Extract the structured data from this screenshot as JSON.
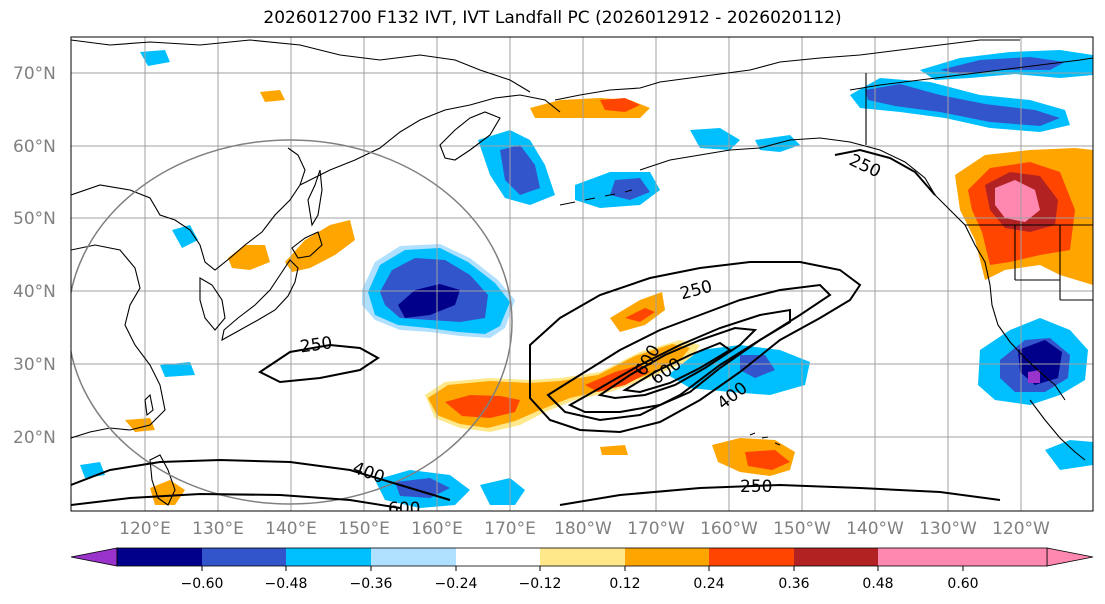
{
  "title": "2026012700 F132 IVT, IVT Landfall PC (2026012912 - 2026020112)",
  "map": {
    "lat_labels": [
      "70°N",
      "60°N",
      "50°N",
      "40°N",
      "30°N",
      "20°N"
    ],
    "lon_labels": [
      "120°E",
      "130°E",
      "140°E",
      "150°E",
      "160°E",
      "170°E",
      "180°W",
      "170°W",
      "160°W",
      "150°W",
      "140°W",
      "130°W",
      "120°W"
    ],
    "contour_labels": [
      "250",
      "250",
      "250",
      "250",
      "400",
      "400",
      "600",
      "600",
      "600"
    ]
  },
  "colorbar": {
    "ticks": [
      "−0.60",
      "−0.48",
      "−0.36",
      "−0.24",
      "−0.12",
      "0.12",
      "0.24",
      "0.36",
      "0.48",
      "0.60"
    ],
    "colors": [
      "#9933cc",
      "#00008b",
      "#3355cc",
      "#00bfff",
      "#b0e0ff",
      "#ffffff",
      "#ffe88a",
      "#ffa500",
      "#ff4500",
      "#b22222",
      "#ff88b0",
      "#ff88b0"
    ]
  }
}
